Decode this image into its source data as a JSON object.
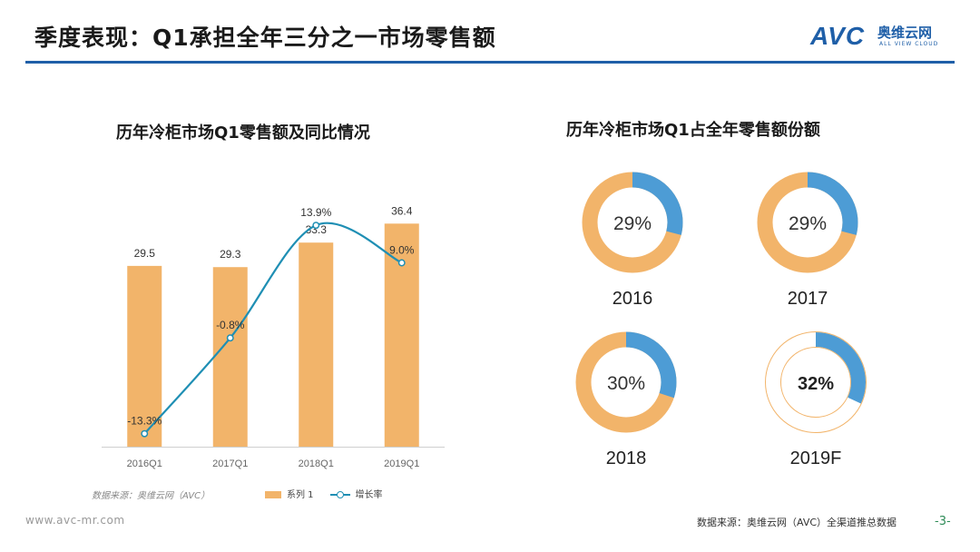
{
  "header": {
    "title": "季度表现：Q1承担全年三分之一市场零售额",
    "logo_mark": "AVC",
    "logo_cn": "奥维云网",
    "logo_en": "ALL VIEW CLOUD"
  },
  "colors": {
    "bar": "#f2b46a",
    "line": "#1f8fb4",
    "donut_main": "#f2b46a",
    "donut_accent": "#4d9cd5",
    "title_rule": "#1f5fa8"
  },
  "chart_data": [
    {
      "type": "bar",
      "title": "历年冷柜市场Q1零售额及同比情况",
      "categories": [
        "2016Q1",
        "2017Q1",
        "2018Q1",
        "2019Q1"
      ],
      "series": [
        {
          "name": "系列 1",
          "kind": "bar",
          "values": [
            29.5,
            29.3,
            33.3,
            36.4
          ],
          "labels": [
            "29.5",
            "29.3",
            "33.3",
            "36.4"
          ]
        },
        {
          "name": "增长率",
          "kind": "line",
          "values": [
            -13.3,
            -0.8,
            13.9,
            9.0
          ],
          "labels": [
            "-13.3%",
            "-0.8%",
            "13.9%",
            "9.0%"
          ]
        }
      ],
      "ylim": [
        0,
        40
      ],
      "y2lim": [
        -15,
        17
      ],
      "source_note": "数据来源：奥维云网（AVC）",
      "legend_bar": "系列 1",
      "legend_line": "增长率"
    },
    {
      "type": "pie",
      "title": "历年冷柜市场Q1占全年零售额份额",
      "items": [
        {
          "year": "2016",
          "share": 29,
          "label": "29%"
        },
        {
          "year": "2017",
          "share": 29,
          "label": "29%"
        },
        {
          "year": "2018",
          "share": 30,
          "label": "30%"
        },
        {
          "year": "2019F",
          "share": 32,
          "label": "32%",
          "forecast": true
        }
      ]
    }
  ],
  "footer": {
    "url": "www.avc-mr.com",
    "source": "数据来源：奥维云网（AVC）全渠道推总数据",
    "page": "-3-"
  }
}
